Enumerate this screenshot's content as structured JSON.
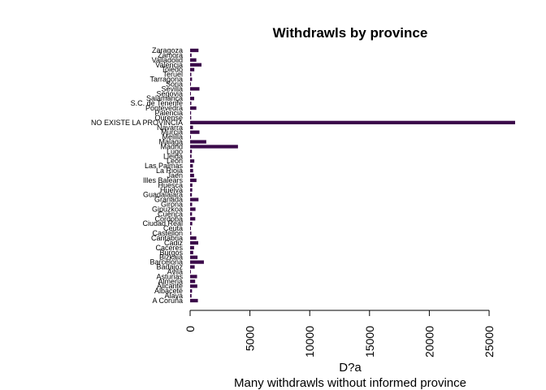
{
  "chart_data": {
    "type": "bar",
    "orientation": "horizontal",
    "title": "Withdrawls by province",
    "xlabel": "D?a",
    "subtitle": "Many withdrawls without informed province",
    "xlim": [
      0,
      25000
    ],
    "xticks": [
      0,
      5000,
      10000,
      15000,
      20000,
      25000
    ],
    "bar_color": "#3b0a4a",
    "categories": [
      "A Coruña",
      "Alava",
      "Albacete",
      "Alicante",
      "Almeria",
      "Asturias",
      "Avila",
      "Badajoz",
      "Barcelona",
      "Bizkaia",
      "Burgos",
      "Caceres",
      "Cadiz",
      "Cantabria",
      "Castellon",
      "Ceuta",
      "Ciudad Real",
      "Cordoba",
      "Cuenca",
      "Gipuzkoa",
      "Girona",
      "Granada",
      "Guadalajara",
      "Huelva",
      "Huesca",
      "Illes Balears",
      "Jaen",
      "La Rioja",
      "Las Palmas",
      "Leon",
      "Lleida",
      "Lugo",
      "Madrid",
      "Malaga",
      "Melilla",
      "Murcia",
      "Navarra",
      "NO EXISTE LA PROVINCIA",
      "Ourense",
      "Palencia",
      "Pontevedra",
      "S.C. de Tenerife",
      "Salamanca",
      "Segovia",
      "Sevilla",
      "Soria",
      "Tarragona",
      "Teruel",
      "Toledo",
      "Valencia",
      "Valladolid",
      "Zamora",
      "Zaragoza"
    ],
    "values": [
      650,
      120,
      160,
      600,
      420,
      580,
      60,
      380,
      1150,
      620,
      260,
      330,
      680,
      520,
      100,
      40,
      180,
      430,
      160,
      450,
      170,
      700,
      150,
      180,
      190,
      530,
      330,
      250,
      230,
      350,
      120,
      150,
      4000,
      1350,
      30,
      780,
      240,
      27500,
      90,
      80,
      520,
      100,
      340,
      60,
      780,
      70,
      160,
      100,
      350,
      950,
      520,
      120,
      700
    ]
  }
}
